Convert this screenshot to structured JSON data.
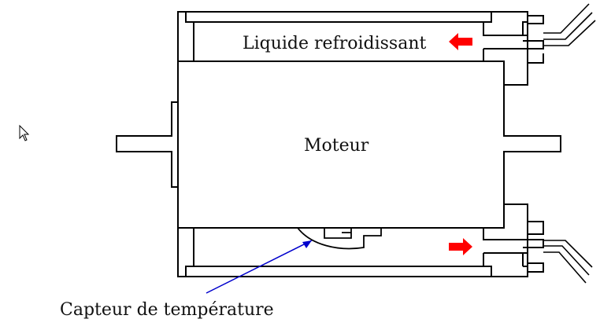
{
  "diagram": {
    "labels": {
      "coolant": "Liquide refroidissant",
      "motor": "Moteur",
      "sensor": "Capteur de température"
    },
    "colors": {
      "outline": "#000000",
      "flow_arrow": "#ff0000",
      "leader_line": "#0000cc"
    },
    "flow_directions": {
      "upper_channel": "left",
      "lower_channel": "right"
    },
    "icons": [
      "mouse-cursor-icon",
      "flow-arrow-icon"
    ]
  }
}
